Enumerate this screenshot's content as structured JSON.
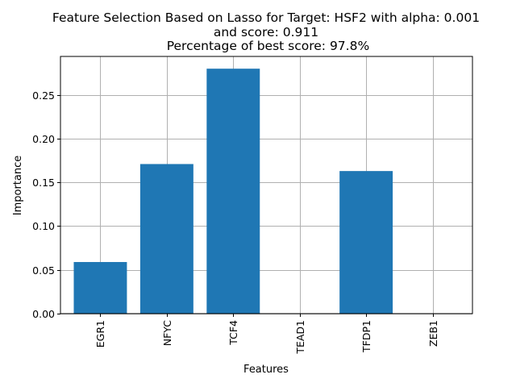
{
  "chart_data": {
    "type": "bar",
    "title_lines": [
      "Feature Selection Based on Lasso for Target: HSF2 with alpha: 0.001",
      "and score: 0.911",
      " Percentage of best score: 97.8%"
    ],
    "xlabel": "Features",
    "ylabel": "Importance",
    "categories": [
      "EGR1",
      "NFYC",
      "TCF4",
      "TEAD1",
      "TFDP1",
      "ZEB1"
    ],
    "values": [
      0.059,
      0.171,
      0.28,
      0.0,
      0.163,
      0.0
    ],
    "ylim": [
      0,
      0.294
    ],
    "yticks": [
      0.0,
      0.05,
      0.1,
      0.15,
      0.2,
      0.25
    ],
    "ytick_labels": [
      "0.00",
      "0.05",
      "0.10",
      "0.15",
      "0.20",
      "0.25"
    ],
    "grid": true,
    "bar_color": "#1f77b4"
  }
}
